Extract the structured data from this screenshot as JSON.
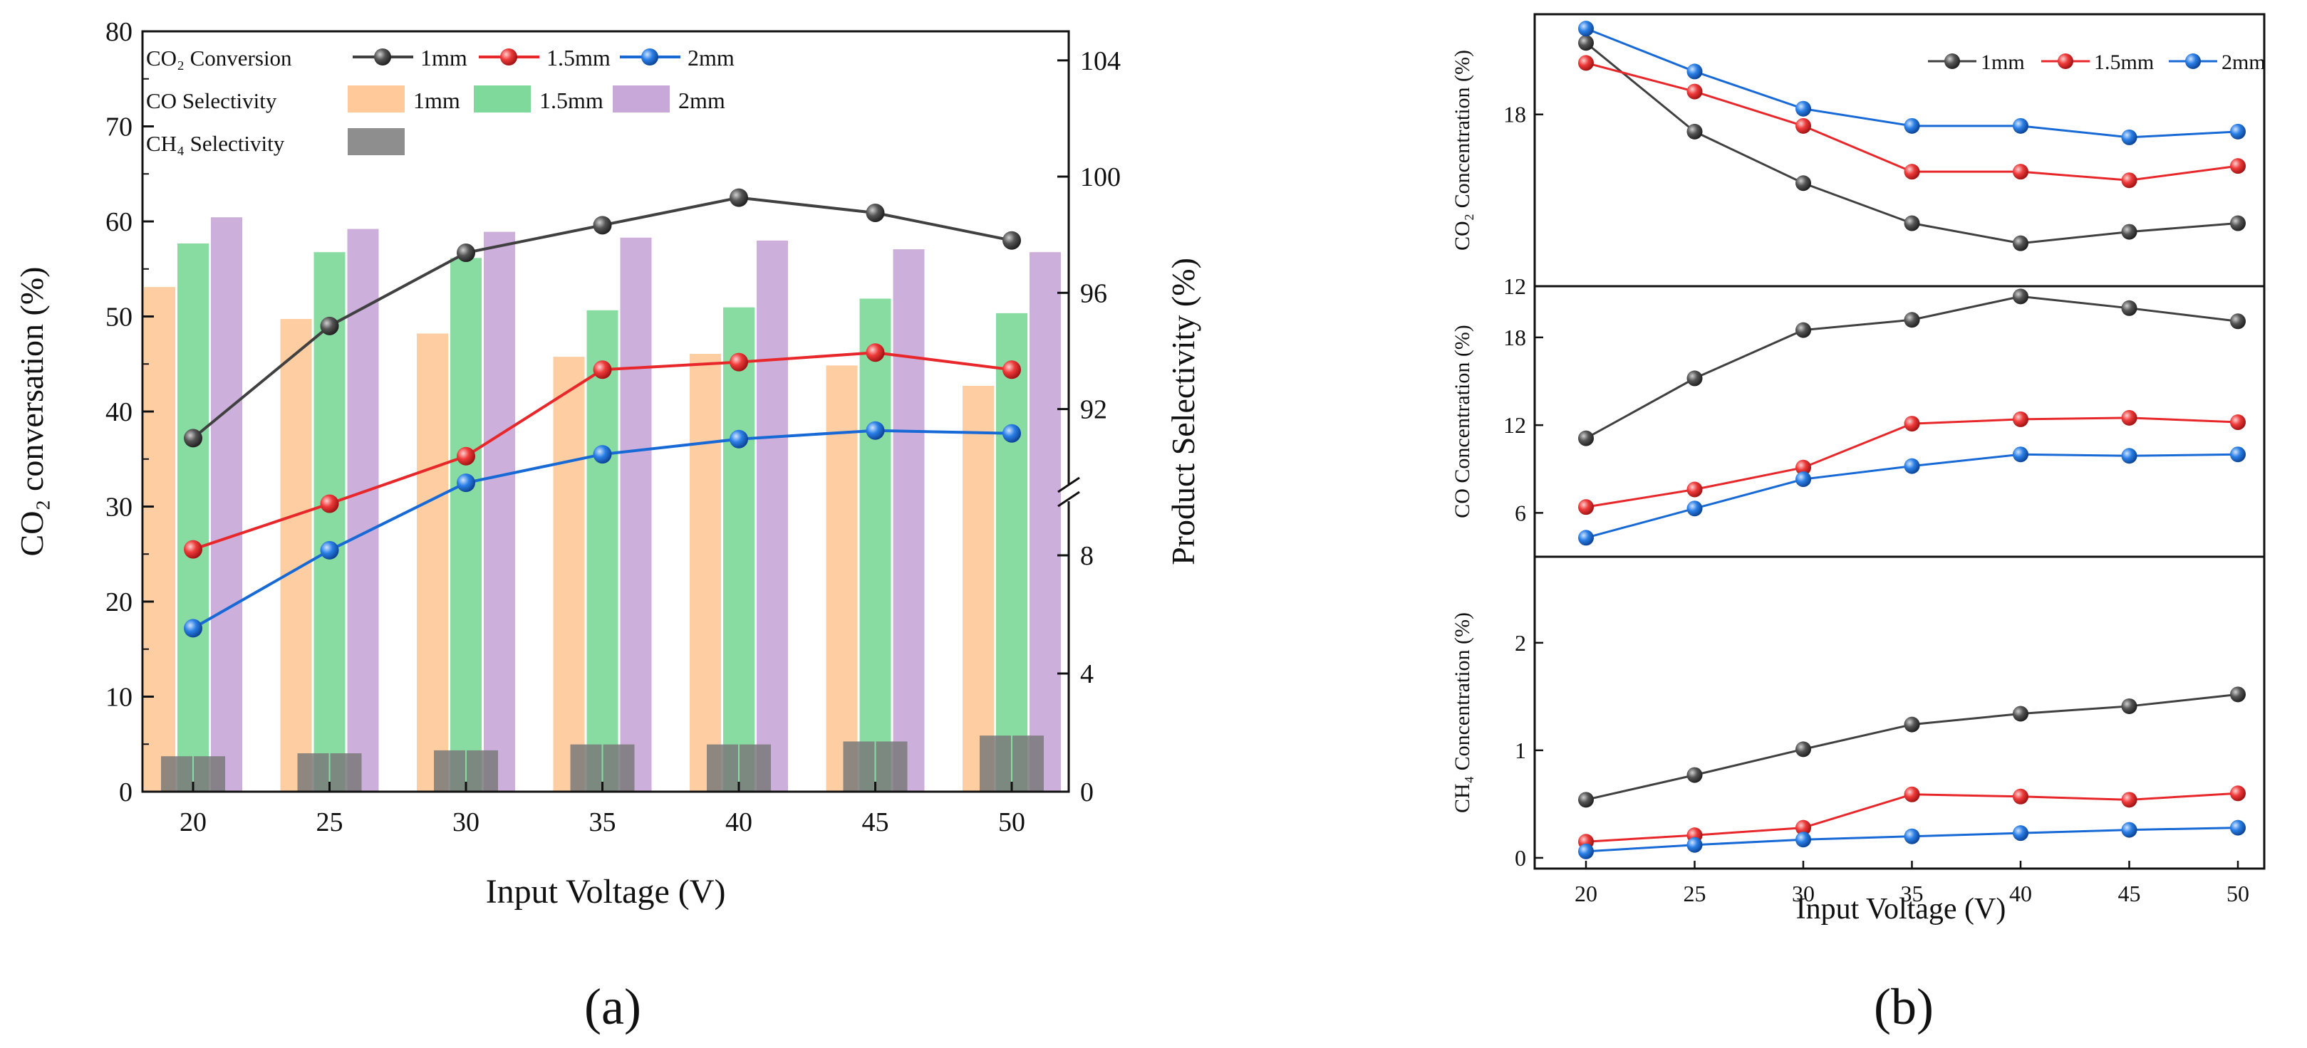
{
  "panels": {
    "a": {
      "caption": "(a)"
    },
    "b": {
      "caption": "(b)"
    }
  },
  "colors": {
    "s1mm": "#404040",
    "s15mm": "#e8272b",
    "s2mm": "#1769d6",
    "bar1mm": "#ffc99a",
    "bar15mm": "#7ed99a",
    "bar2mm": "#c8a8d8",
    "ch4bar": "#7a7a7a"
  },
  "chart_data": [
    {
      "id": "a",
      "type": "bar+line",
      "x": [
        20,
        25,
        30,
        35,
        40,
        45,
        50
      ],
      "xlabel": "Input Voltage (V)",
      "ylabel_left": "CO₂ conversation (%)",
      "ylabel_right": "Product Selectivity (%)",
      "ylim_left": [
        0,
        80
      ],
      "left_ticks": [
        "0",
        "10",
        "20",
        "30",
        "40",
        "50",
        "60",
        "70",
        "80"
      ],
      "right_axis": {
        "lower": {
          "range": [
            0,
            10
          ],
          "ticks": [
            "0",
            "4",
            "8"
          ]
        },
        "upper": {
          "range": [
            89,
            105
          ],
          "ticks": [
            "92",
            "96",
            "100",
            "104"
          ]
        }
      },
      "conversion_series": [
        {
          "name": "1mm",
          "color_key": "s1mm",
          "values": [
            37.2,
            49.0,
            56.7,
            59.6,
            62.5,
            60.9,
            58.0
          ]
        },
        {
          "name": "1.5mm",
          "color_key": "s15mm",
          "values": [
            25.5,
            30.3,
            35.3,
            44.4,
            45.2,
            46.2,
            44.4
          ]
        },
        {
          "name": "2mm",
          "color_key": "s2mm",
          "values": [
            17.2,
            25.4,
            32.5,
            35.5,
            37.1,
            38.0,
            37.7
          ]
        }
      ],
      "co_selectivity_series": [
        {
          "name": "1mm",
          "color_key": "bar1mm",
          "values": [
            96.2,
            95.1,
            94.6,
            93.8,
            93.9,
            93.5,
            92.8
          ]
        },
        {
          "name": "1.5mm",
          "color_key": "bar15mm",
          "values": [
            97.7,
            97.4,
            97.2,
            95.4,
            95.5,
            95.8,
            95.3
          ]
        },
        {
          "name": "2mm",
          "color_key": "bar2mm",
          "values": [
            98.6,
            98.2,
            98.1,
            97.9,
            97.8,
            97.5,
            97.4
          ]
        }
      ],
      "ch4_selectivity": {
        "name": "CH₄ Selectivity",
        "color_key": "ch4bar",
        "values": [
          1.2,
          1.3,
          1.4,
          1.6,
          1.6,
          1.7,
          1.9
        ]
      },
      "legend": {
        "row1_label": "CO₂ Conversion",
        "row2_label": "CO  Selectivity",
        "row3_label": "CH₄ Selectivity",
        "entries": [
          "1mm",
          "1.5mm",
          "2mm"
        ]
      }
    },
    {
      "id": "b",
      "type": "line",
      "x": [
        20,
        25,
        30,
        35,
        40,
        45,
        50
      ],
      "xlabel": "Input Voltage (V)",
      "legend_entries": [
        "1mm",
        "1.5mm",
        "2mm"
      ],
      "subplots": [
        {
          "ylabel": "CO₂ Concentration (%)",
          "ylim": [
            12,
            21.5
          ],
          "ticks": [
            12,
            18
          ],
          "series": [
            {
              "name": "1mm",
              "color_key": "s1mm",
              "values": [
                20.5,
                17.4,
                15.6,
                14.2,
                13.5,
                13.9,
                14.2
              ]
            },
            {
              "name": "1.5mm",
              "color_key": "s15mm",
              "values": [
                19.8,
                18.8,
                17.6,
                16.0,
                16.0,
                15.7,
                16.2
              ]
            },
            {
              "name": "2mm",
              "color_key": "s2mm",
              "values": [
                21.0,
                19.5,
                18.2,
                17.6,
                17.6,
                17.2,
                17.4
              ]
            }
          ]
        },
        {
          "ylabel": "CO Concentration (%)",
          "ylim": [
            3,
            21.5
          ],
          "ticks": [
            6,
            12,
            18
          ],
          "series": [
            {
              "name": "1mm",
              "color_key": "s1mm",
              "values": [
                11.1,
                15.2,
                18.5,
                19.2,
                20.8,
                20.0,
                19.1
              ]
            },
            {
              "name": "1.5mm",
              "color_key": "s15mm",
              "values": [
                6.4,
                7.6,
                9.1,
                12.1,
                12.4,
                12.5,
                12.2
              ]
            },
            {
              "name": "2mm",
              "color_key": "s2mm",
              "values": [
                4.3,
                6.3,
                8.3,
                9.2,
                10.0,
                9.9,
                10.0
              ]
            }
          ]
        },
        {
          "ylabel": "CH₄ Concentration (%)",
          "ylim": [
            -0.1,
            2.8
          ],
          "ticks": [
            0,
            1,
            2
          ],
          "series": [
            {
              "name": "1mm",
              "color_key": "s1mm",
              "values": [
                0.54,
                0.77,
                1.01,
                1.24,
                1.34,
                1.41,
                1.52
              ]
            },
            {
              "name": "1.5mm",
              "color_key": "s15mm",
              "values": [
                0.15,
                0.21,
                0.28,
                0.59,
                0.57,
                0.54,
                0.6
              ]
            },
            {
              "name": "2mm",
              "color_key": "s2mm",
              "values": [
                0.06,
                0.12,
                0.17,
                0.2,
                0.23,
                0.26,
                0.28
              ]
            }
          ]
        }
      ]
    }
  ]
}
